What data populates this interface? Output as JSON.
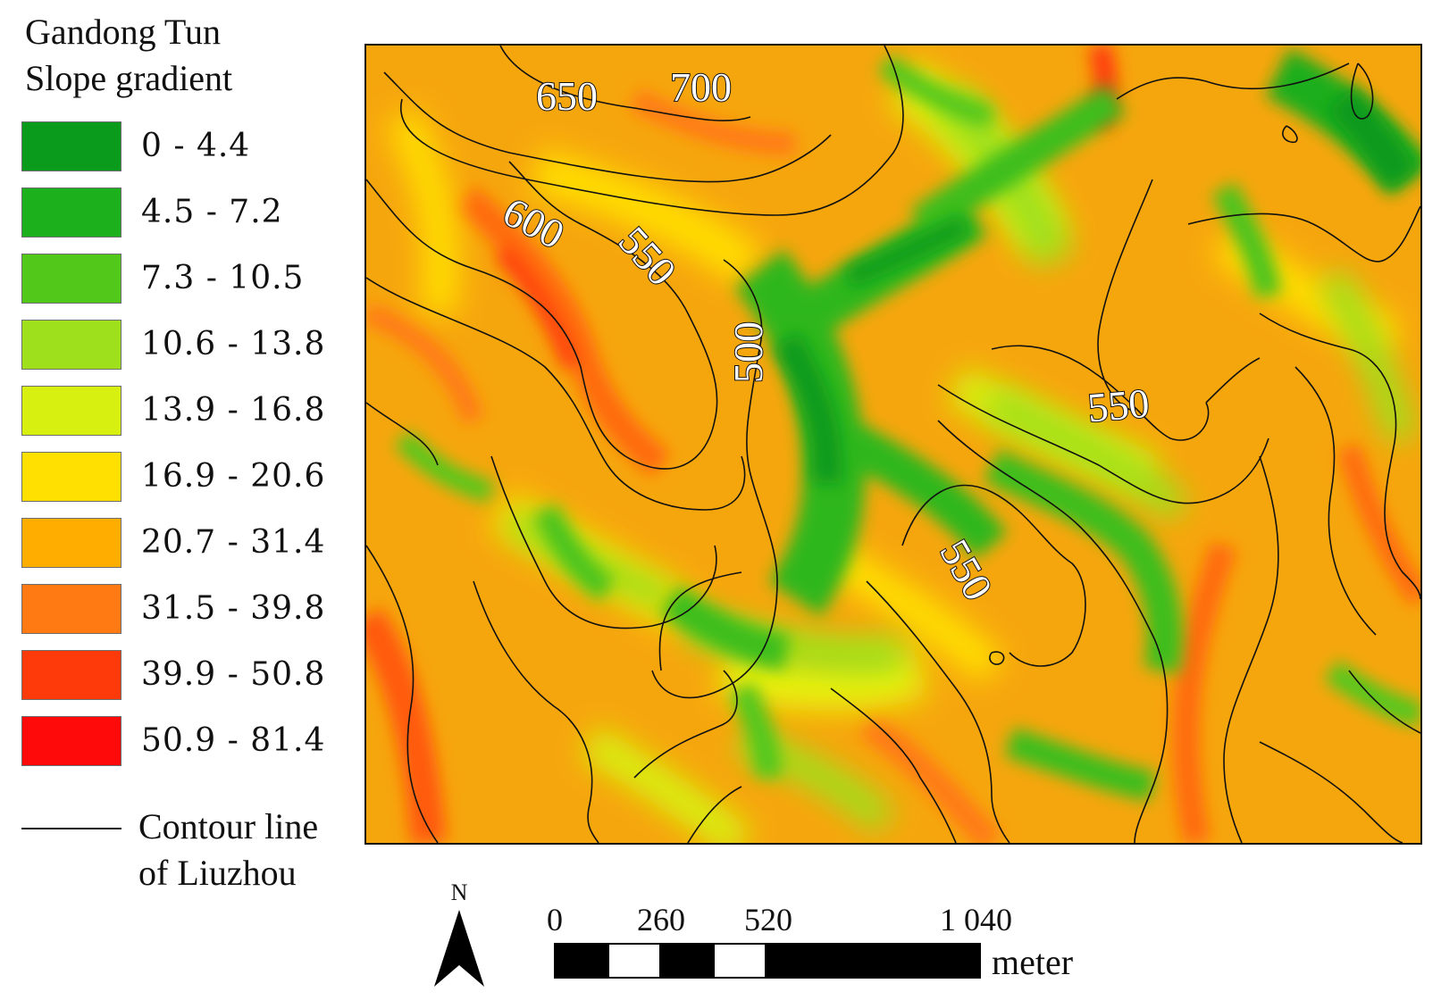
{
  "legend": {
    "title_lines": [
      "Gandong Tun",
      "Slope gradient"
    ],
    "classes": [
      {
        "label": "0 - 4.4",
        "color": "#0a9a1c"
      },
      {
        "label": "4.5 - 7.2",
        "color": "#1cb01c"
      },
      {
        "label": "7.3 - 10.5",
        "color": "#52c81a"
      },
      {
        "label": "10.6 - 13.8",
        "color": "#9ee01c"
      },
      {
        "label": "13.9 - 16.8",
        "color": "#d8f010"
      },
      {
        "label": "16.9 - 20.6",
        "color": "#ffe000"
      },
      {
        "label": "20.7 - 31.4",
        "color": "#ffae00"
      },
      {
        "label": "31.5 - 39.8",
        "color": "#ff7a12"
      },
      {
        "label": "39.9 - 50.8",
        "color": "#ff3a0a"
      },
      {
        "label": "50.9 - 81.4",
        "color": "#ff0a0a"
      }
    ],
    "contour_label_lines": [
      "Contour line",
      "of Liuzhou"
    ]
  },
  "contour_labels": [
    "650",
    "700",
    "600",
    "550",
    "500",
    "550",
    "550"
  ],
  "north_arrow": {
    "label": "N"
  },
  "scale_bar": {
    "ticks": [
      "0",
      "260",
      "520",
      "1 040"
    ],
    "unit": "meter"
  }
}
